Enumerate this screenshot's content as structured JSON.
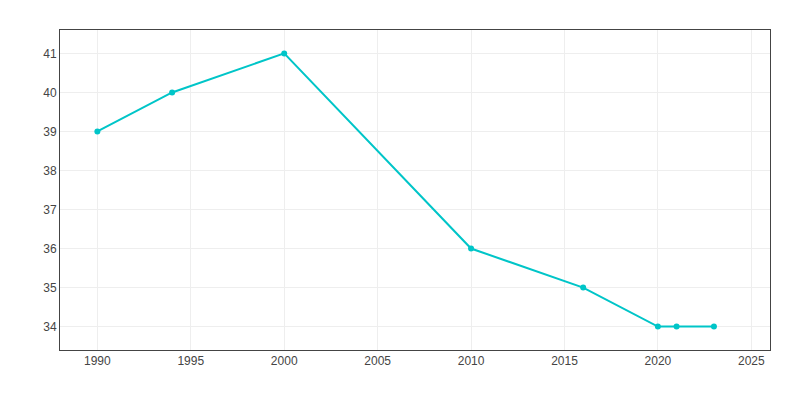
{
  "chart_data": {
    "type": "line",
    "x": [
      1990,
      1994,
      2000,
      2010,
      2016,
      2020,
      2021,
      2023
    ],
    "values": [
      39,
      40,
      41,
      36,
      35,
      34,
      34,
      34
    ],
    "color": "#00C5C8",
    "marker": "circle",
    "xlim": [
      1988,
      2026
    ],
    "ylim": [
      33.4,
      41.6
    ],
    "xticks": [
      1990,
      1995,
      2000,
      2005,
      2010,
      2015,
      2020,
      2025
    ],
    "yticks": [
      34,
      35,
      36,
      37,
      38,
      39,
      40,
      41
    ],
    "grid": true
  }
}
